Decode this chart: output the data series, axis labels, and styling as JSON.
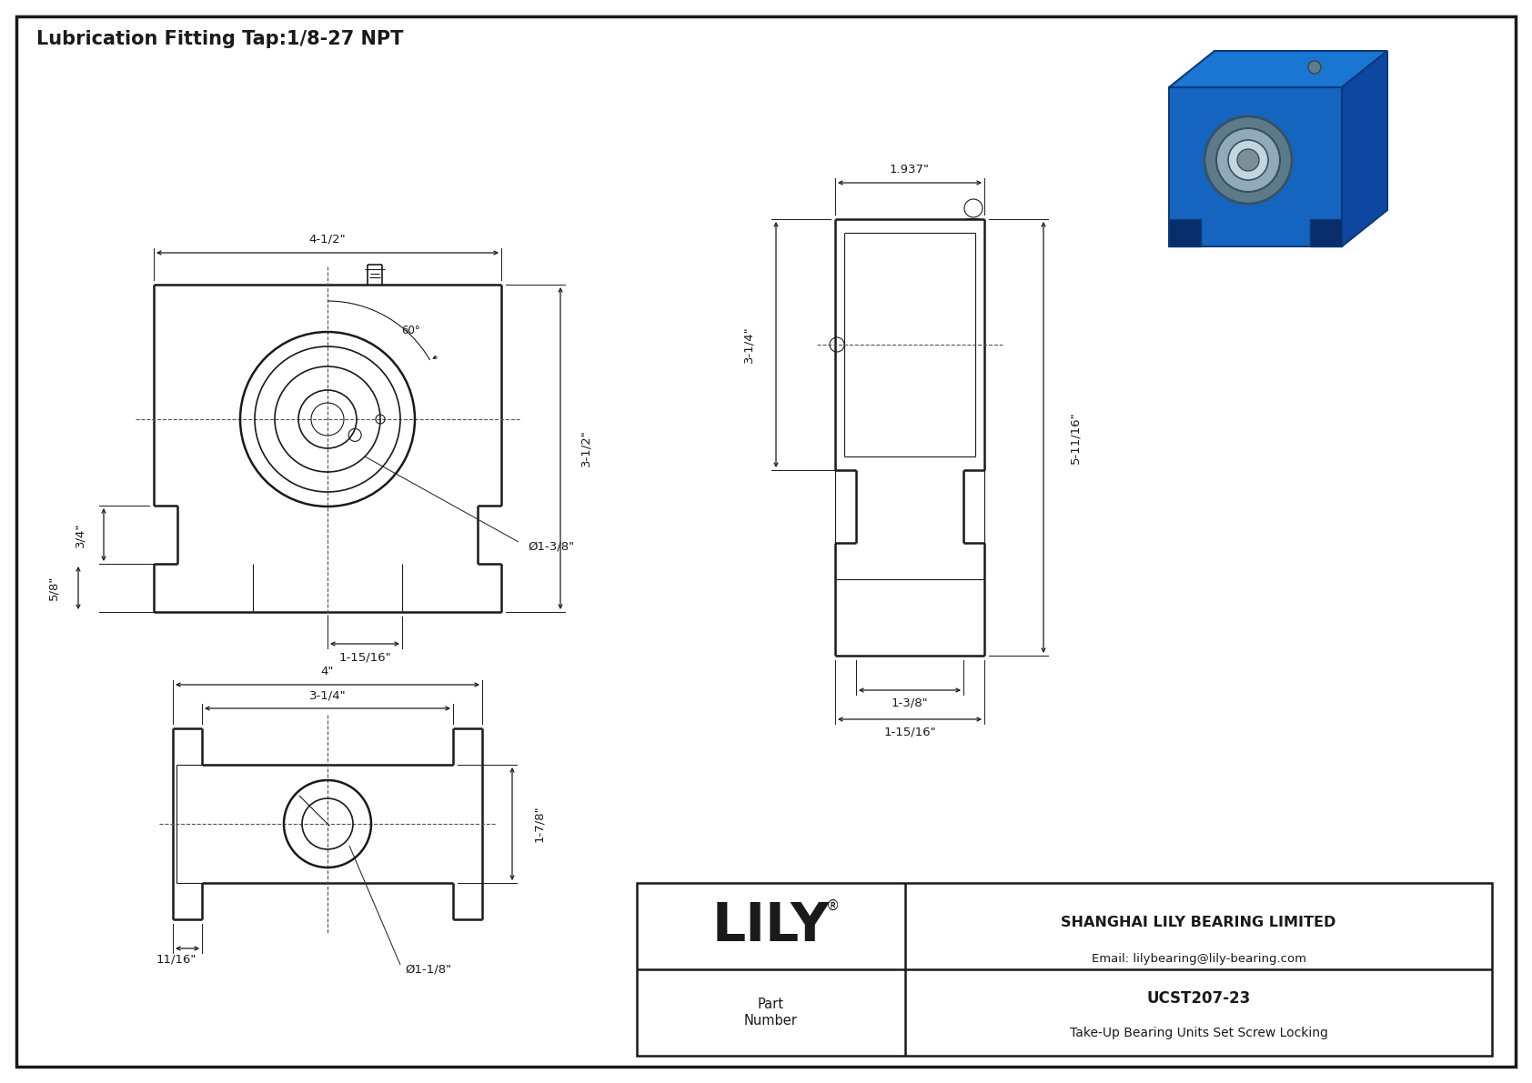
{
  "title": "Lubrication Fitting Tap:1/8-27 NPT",
  "bg_color": "#ffffff",
  "line_color": "#1a1a1a",
  "dim_color": "#1a1a1a",
  "title_fontsize": 15,
  "dim_fontsize": 9.5,
  "company": "SHANGHAI LILY BEARING LIMITED",
  "email": "Email: lilybearing@lily-bearing.com",
  "part_number": "UCST207-23",
  "part_desc": "Take-Up Bearing Units Set Screw Locking",
  "part_label": "Part\nNumber",
  "lily_text": "LILY",
  "iso_body_color": "#1a6ab5",
  "iso_top_color": "#2277cc",
  "iso_right_color": "#0d4d8a",
  "iso_bearing_color": "#8a9aa8",
  "iso_inner_color": "#c5ced4"
}
